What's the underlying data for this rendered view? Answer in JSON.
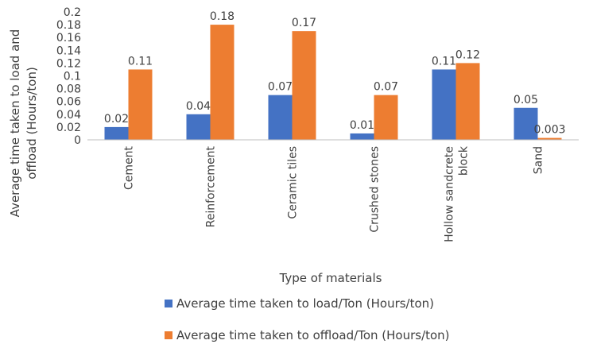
{
  "chart_data": {
    "type": "bar",
    "title": "",
    "xlabel": "Type of materials",
    "ylabel": "Average time taken to load and offload (Hours/ton)",
    "ylabel_lines": [
      "Average time taken to load and",
      "offload (Hours/ton)"
    ],
    "ylim": [
      0,
      0.2
    ],
    "yticks": [
      "0",
      "0.02",
      "0.04",
      "0.06",
      "0.08",
      "0.1",
      "0.12",
      "0.14",
      "0.16",
      "0.18",
      "0.2"
    ],
    "categories": [
      "Cement",
      "Reinforcement",
      "Ceramic tiles",
      "Crushed stones",
      "Hollow sandcrete block",
      "Sand"
    ],
    "category_lines": [
      [
        "Cement"
      ],
      [
        "Reinforcement"
      ],
      [
        "Ceramic tiles"
      ],
      [
        "Crushed stones"
      ],
      [
        "Hollow sandcrete",
        "block"
      ],
      [
        "Sand"
      ]
    ],
    "series": [
      {
        "name": "Average time taken to load/Ton (Hours/ton)",
        "values": [
          0.02,
          0.04,
          0.07,
          0.01,
          0.11,
          0.05
        ],
        "labels": [
          "0.02",
          "0.04",
          "0.07",
          "0.01",
          "0.11",
          "0.05"
        ],
        "color": "#4472C4"
      },
      {
        "name": "Average time taken to offload/Ton (Hours/ton)",
        "values": [
          0.11,
          0.18,
          0.17,
          0.07,
          0.12,
          0.003
        ],
        "labels": [
          "0.11",
          "0.18",
          "0.17",
          "0.07",
          "0.12",
          "0.003"
        ],
        "color": "#ED7D31"
      }
    ],
    "grid": false,
    "legend_position": "bottom"
  }
}
